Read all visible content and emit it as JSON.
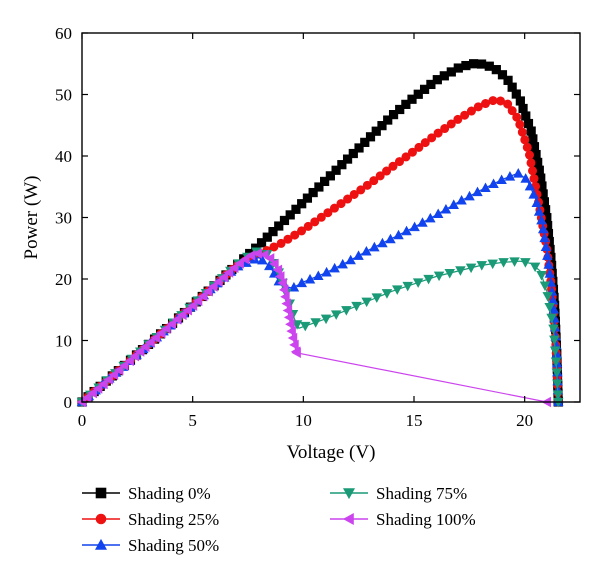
{
  "chart_data": {
    "type": "line",
    "title": "",
    "xlabel": "Voltage (V)",
    "ylabel": "Power (W)",
    "xlim": [
      0,
      22.5
    ],
    "ylim": [
      0,
      60
    ],
    "xticks": [
      0,
      5,
      10,
      15,
      20
    ],
    "yticks": [
      0,
      10,
      20,
      30,
      40,
      50,
      60
    ],
    "grid": false,
    "legend_position": "bottom",
    "series": [
      {
        "name": "Shading 0%",
        "color": "#000000",
        "marker": "square",
        "points": [
          [
            0,
            0
          ],
          [
            2,
            6.2
          ],
          [
            4,
            12.5
          ],
          [
            6,
            19
          ],
          [
            7,
            22.3
          ],
          [
            8,
            25.5
          ],
          [
            9,
            29
          ],
          [
            10,
            32.5
          ],
          [
            11,
            36
          ],
          [
            12,
            39.5
          ],
          [
            13,
            43
          ],
          [
            14,
            46.5
          ],
          [
            15,
            49.5
          ],
          [
            16,
            52.3
          ],
          [
            17,
            54.3
          ],
          [
            17.6,
            55
          ],
          [
            18,
            55
          ],
          [
            18.6,
            54.4
          ],
          [
            19.2,
            52.6
          ],
          [
            19.8,
            49
          ],
          [
            20.3,
            44
          ],
          [
            20.7,
            37
          ],
          [
            21,
            30
          ],
          [
            21.2,
            23
          ],
          [
            21.35,
            16
          ],
          [
            21.45,
            8
          ],
          [
            21.52,
            0
          ]
        ]
      },
      {
        "name": "Shading 25%",
        "color": "#ee1111",
        "marker": "circle",
        "points": [
          [
            0,
            0
          ],
          [
            2,
            6.2
          ],
          [
            4,
            12.5
          ],
          [
            6,
            19
          ],
          [
            7,
            22.3
          ],
          [
            8,
            24
          ],
          [
            9,
            25.8
          ],
          [
            10,
            28
          ],
          [
            11,
            30.5
          ],
          [
            12,
            33
          ],
          [
            13,
            35.5
          ],
          [
            14,
            38.2
          ],
          [
            15,
            40.8
          ],
          [
            16,
            43.5
          ],
          [
            17,
            46
          ],
          [
            18,
            48.2
          ],
          [
            18.7,
            49.2
          ],
          [
            19.2,
            48.6
          ],
          [
            19.7,
            46
          ],
          [
            20.2,
            40.5
          ],
          [
            20.6,
            33
          ],
          [
            21,
            25
          ],
          [
            21.2,
            19
          ],
          [
            21.4,
            10
          ],
          [
            21.52,
            0
          ]
        ]
      },
      {
        "name": "Shading 50%",
        "color": "#1144ee",
        "marker": "triangle-up",
        "points": [
          [
            0,
            0
          ],
          [
            2,
            6.2
          ],
          [
            4,
            12.5
          ],
          [
            6,
            19
          ],
          [
            7,
            22
          ],
          [
            8,
            23.5
          ],
          [
            8.5,
            22
          ],
          [
            9,
            19
          ],
          [
            9.5,
            18.5
          ],
          [
            10,
            19.5
          ],
          [
            11,
            21
          ],
          [
            12,
            22.8
          ],
          [
            13,
            24.8
          ],
          [
            14,
            26.6
          ],
          [
            15,
            28.4
          ],
          [
            16,
            30.4
          ],
          [
            17,
            32.5
          ],
          [
            18,
            34.4
          ],
          [
            19,
            36.2
          ],
          [
            19.7,
            37.2
          ],
          [
            20.1,
            36.2
          ],
          [
            20.5,
            33
          ],
          [
            20.8,
            29
          ],
          [
            21.1,
            22
          ],
          [
            21.3,
            16
          ],
          [
            21.45,
            8
          ],
          [
            21.52,
            0
          ]
        ]
      },
      {
        "name": "Shading 75%",
        "color": "#1a9a76",
        "marker": "triangle-down",
        "points": [
          [
            0,
            0
          ],
          [
            2,
            6.2
          ],
          [
            4,
            12.5
          ],
          [
            6,
            19
          ],
          [
            7,
            22.3
          ],
          [
            7.8,
            24.5
          ],
          [
            8.4,
            24
          ],
          [
            8.9,
            21
          ],
          [
            9.3,
            17
          ],
          [
            9.6,
            13.5
          ],
          [
            9.8,
            12
          ],
          [
            11,
            13.5
          ],
          [
            12,
            15
          ],
          [
            13,
            16.5
          ],
          [
            14,
            18
          ],
          [
            15,
            19.2
          ],
          [
            16,
            20.4
          ],
          [
            17,
            21.3
          ],
          [
            18,
            22.2
          ],
          [
            19,
            22.7
          ],
          [
            19.8,
            22.9
          ],
          [
            20.3,
            22.5
          ],
          [
            20.7,
            21.3
          ],
          [
            21,
            18
          ],
          [
            21.3,
            12
          ],
          [
            21.45,
            5
          ],
          [
            21.52,
            0
          ]
        ]
      },
      {
        "name": "Shading 100%",
        "color": "#cc44ee",
        "marker": "triangle-left",
        "points": [
          [
            0,
            0
          ],
          [
            1,
            3
          ],
          [
            2,
            6.2
          ],
          [
            3,
            9.4
          ],
          [
            4,
            12.5
          ],
          [
            5,
            15.6
          ],
          [
            6,
            19
          ],
          [
            7,
            22.2
          ],
          [
            7.6,
            23.8
          ],
          [
            8,
            24.2
          ],
          [
            8.4,
            23.8
          ],
          [
            8.8,
            22
          ],
          [
            9.1,
            19
          ],
          [
            9.3,
            15
          ],
          [
            9.5,
            11
          ],
          [
            9.65,
            8.5
          ],
          [
            9.7,
            8
          ],
          [
            21,
            0
          ]
        ]
      }
    ]
  }
}
